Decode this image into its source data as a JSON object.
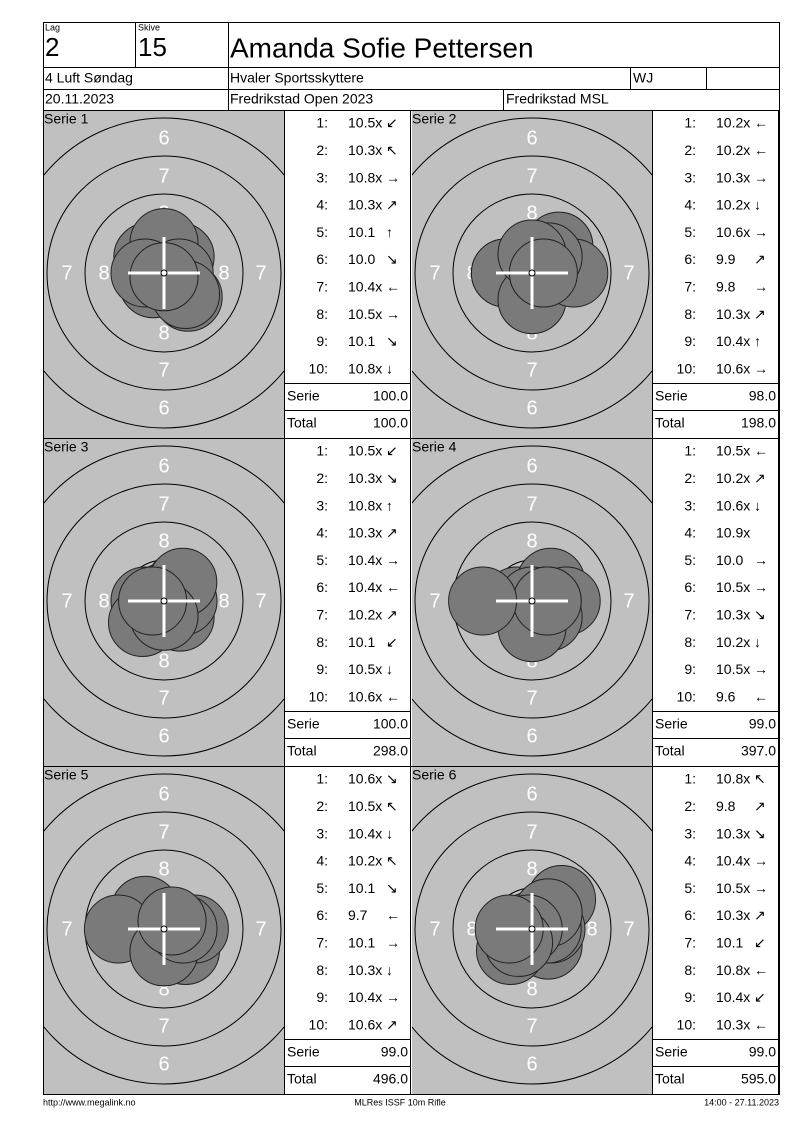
{
  "header": {
    "lag_label": "Lag",
    "lag": "2",
    "skive_label": "Skive",
    "skive": "15",
    "name": "Amanda Sofie Pettersen",
    "class": "4 Luft Søndag",
    "club": "Hvaler Sportsskyttere",
    "category": "WJ",
    "date": "20.11.2023",
    "event": "Fredrikstad Open 2023",
    "venue": "Fredrikstad MSL"
  },
  "ring_labels": [
    "6",
    "7",
    "8"
  ],
  "summary_labels": {
    "serie": "Serie",
    "total": "Total"
  },
  "series": [
    {
      "title": "Serie 1",
      "serie": "100.0",
      "total": "100.0",
      "shots": [
        {
          "n": "1:",
          "score": {
            "value": 10.5,
            "label": "10.5x"
          },
          "dir": "↙"
        },
        {
          "n": "2:",
          "score": {
            "value": 10.3,
            "label": "10.3x"
          },
          "dir": "↖"
        },
        {
          "n": "3:",
          "score": {
            "value": 10.8,
            "label": "10.8x"
          },
          "dir": "→"
        },
        {
          "n": "4:",
          "score": {
            "value": 10.3,
            "label": "10.3x"
          },
          "dir": "↗"
        },
        {
          "n": "5:",
          "score": {
            "value": 10.1,
            "label": "10.1"
          },
          "dir": "↑"
        },
        {
          "n": "6:",
          "score": {
            "value": 10.0,
            "label": "10.0"
          },
          "dir": "↘"
        },
        {
          "n": "7:",
          "score": {
            "value": 10.4,
            "label": "10.4x"
          },
          "dir": "←"
        },
        {
          "n": "8:",
          "score": {
            "value": 10.5,
            "label": "10.5x"
          },
          "dir": "→"
        },
        {
          "n": "9:",
          "score": {
            "value": 10.1,
            "label": "10.1"
          },
          "dir": "↘"
        },
        {
          "n": "10:",
          "score": {
            "value": 10.8,
            "label": "10.8x"
          },
          "dir": "↓"
        }
      ]
    },
    {
      "title": "Serie 2",
      "serie": "98.0",
      "total": "198.0",
      "shots": [
        {
          "n": "1:",
          "score": {
            "value": 10.2,
            "label": "10.2x"
          },
          "dir": "←"
        },
        {
          "n": "2:",
          "score": {
            "value": 10.2,
            "label": "10.2x"
          },
          "dir": "←"
        },
        {
          "n": "3:",
          "score": {
            "value": 10.3,
            "label": "10.3x"
          },
          "dir": "→"
        },
        {
          "n": "4:",
          "score": {
            "value": 10.2,
            "label": "10.2x"
          },
          "dir": "↓"
        },
        {
          "n": "5:",
          "score": {
            "value": 10.6,
            "label": "10.6x"
          },
          "dir": "→"
        },
        {
          "n": "6:",
          "score": {
            "value": 9.9,
            "label": "9.9"
          },
          "dir": "↗"
        },
        {
          "n": "7:",
          "score": {
            "value": 9.8,
            "label": "9.8"
          },
          "dir": "→"
        },
        {
          "n": "8:",
          "score": {
            "value": 10.3,
            "label": "10.3x"
          },
          "dir": "↗"
        },
        {
          "n": "9:",
          "score": {
            "value": 10.4,
            "label": "10.4x"
          },
          "dir": "↑"
        },
        {
          "n": "10:",
          "score": {
            "value": 10.6,
            "label": "10.6x"
          },
          "dir": "→"
        }
      ]
    },
    {
      "title": "Serie 3",
      "serie": "100.0",
      "total": "298.0",
      "shots": [
        {
          "n": "1:",
          "score": {
            "value": 10.5,
            "label": "10.5x"
          },
          "dir": "↙"
        },
        {
          "n": "2:",
          "score": {
            "value": 10.3,
            "label": "10.3x"
          },
          "dir": "↘"
        },
        {
          "n": "3:",
          "score": {
            "value": 10.8,
            "label": "10.8x"
          },
          "dir": "↑"
        },
        {
          "n": "4:",
          "score": {
            "value": 10.3,
            "label": "10.3x"
          },
          "dir": "↗"
        },
        {
          "n": "5:",
          "score": {
            "value": 10.4,
            "label": "10.4x"
          },
          "dir": "→"
        },
        {
          "n": "6:",
          "score": {
            "value": 10.4,
            "label": "10.4x"
          },
          "dir": "←"
        },
        {
          "n": "7:",
          "score": {
            "value": 10.2,
            "label": "10.2x"
          },
          "dir": "↗"
        },
        {
          "n": "8:",
          "score": {
            "value": 10.1,
            "label": "10.1"
          },
          "dir": "↙"
        },
        {
          "n": "9:",
          "score": {
            "value": 10.5,
            "label": "10.5x"
          },
          "dir": "↓"
        },
        {
          "n": "10:",
          "score": {
            "value": 10.6,
            "label": "10.6x"
          },
          "dir": "←"
        }
      ]
    },
    {
      "title": "Serie 4",
      "serie": "99.0",
      "total": "397.0",
      "shots": [
        {
          "n": "1:",
          "score": {
            "value": 10.5,
            "label": "10.5x"
          },
          "dir": "←"
        },
        {
          "n": "2:",
          "score": {
            "value": 10.2,
            "label": "10.2x"
          },
          "dir": "↗"
        },
        {
          "n": "3:",
          "score": {
            "value": 10.6,
            "label": "10.6x"
          },
          "dir": "↓"
        },
        {
          "n": "4:",
          "score": {
            "value": 10.9,
            "label": "10.9x"
          }
        },
        {
          "n": "5:",
          "score": {
            "value": 10.0,
            "label": "10.0"
          },
          "dir": "→"
        },
        {
          "n": "6:",
          "score": {
            "value": 10.5,
            "label": "10.5x"
          },
          "dir": "→"
        },
        {
          "n": "7:",
          "score": {
            "value": 10.3,
            "label": "10.3x"
          },
          "dir": "↘"
        },
        {
          "n": "8:",
          "score": {
            "value": 10.2,
            "label": "10.2x"
          },
          "dir": "↓"
        },
        {
          "n": "9:",
          "score": {
            "value": 10.5,
            "label": "10.5x"
          },
          "dir": "→"
        },
        {
          "n": "10:",
          "score": {
            "value": 9.6,
            "label": "9.6"
          },
          "dir": "←"
        }
      ]
    },
    {
      "title": "Serie 5",
      "serie": "99.0",
      "total": "496.0",
      "shots": [
        {
          "n": "1:",
          "score": {
            "value": 10.6,
            "label": "10.6x"
          },
          "dir": "↘"
        },
        {
          "n": "2:",
          "score": {
            "value": 10.5,
            "label": "10.5x"
          },
          "dir": "↖"
        },
        {
          "n": "3:",
          "score": {
            "value": 10.4,
            "label": "10.4x"
          },
          "dir": "↓"
        },
        {
          "n": "4:",
          "score": {
            "value": 10.2,
            "label": "10.2x"
          },
          "dir": "↖"
        },
        {
          "n": "5:",
          "score": {
            "value": 10.1,
            "label": "10.1"
          },
          "dir": "↘"
        },
        {
          "n": "6:",
          "score": {
            "value": 9.7,
            "label": "9.7"
          },
          "dir": "←"
        },
        {
          "n": "7:",
          "score": {
            "value": 10.1,
            "label": "10.1"
          },
          "dir": "→"
        },
        {
          "n": "8:",
          "score": {
            "value": 10.3,
            "label": "10.3x"
          },
          "dir": "↓"
        },
        {
          "n": "9:",
          "score": {
            "value": 10.4,
            "label": "10.4x"
          },
          "dir": "→"
        },
        {
          "n": "10:",
          "score": {
            "value": 10.6,
            "label": "10.6x"
          },
          "dir": "↗"
        }
      ]
    },
    {
      "title": "Serie 6",
      "serie": "99.0",
      "total": "595.0",
      "shots": [
        {
          "n": "1:",
          "score": {
            "value": 10.8,
            "label": "10.8x"
          },
          "dir": "↖"
        },
        {
          "n": "2:",
          "score": {
            "value": 9.8,
            "label": "9.8"
          },
          "dir": "↗"
        },
        {
          "n": "3:",
          "score": {
            "value": 10.3,
            "label": "10.3x"
          },
          "dir": "↘"
        },
        {
          "n": "4:",
          "score": {
            "value": 10.4,
            "label": "10.4x"
          },
          "dir": "→"
        },
        {
          "n": "5:",
          "score": {
            "value": 10.5,
            "label": "10.5x"
          },
          "dir": "→"
        },
        {
          "n": "6:",
          "score": {
            "value": 10.3,
            "label": "10.3x"
          },
          "dir": "↗"
        },
        {
          "n": "7:",
          "score": {
            "value": 10.1,
            "label": "10.1"
          },
          "dir": "↙"
        },
        {
          "n": "8:",
          "score": {
            "value": 10.8,
            "label": "10.8x"
          },
          "dir": "←"
        },
        {
          "n": "9:",
          "score": {
            "value": 10.4,
            "label": "10.4x"
          },
          "dir": "↙"
        },
        {
          "n": "10:",
          "score": {
            "value": 10.3,
            "label": "10.3x"
          },
          "dir": "←"
        }
      ]
    }
  ],
  "footer": {
    "url": "http://www.megalink.no",
    "program": "MLRes ISSF 10m Rifle",
    "time": "14:00 - 27.11.2023"
  }
}
